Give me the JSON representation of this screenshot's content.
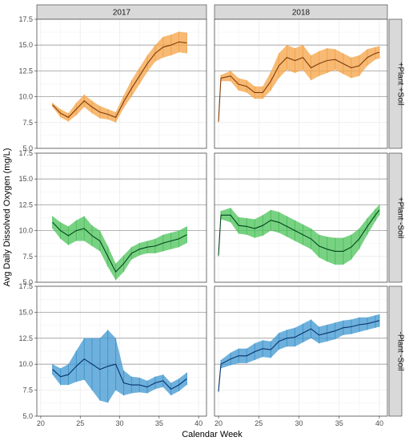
{
  "chart_data": {
    "type": "line",
    "ylabel": "Avg Daily Dissolved Oxygen (mg/L)",
    "xlabel": "Calendar Week",
    "facet_columns": [
      "2017",
      "2018"
    ],
    "facet_rows": [
      "+Plant +Soil",
      "+Plant -Soil",
      "-Plant -Soil"
    ],
    "xlim": [
      19.5,
      41
    ],
    "ylim": [
      5.0,
      17.5
    ],
    "x_ticks": [
      20,
      25,
      30,
      35,
      40
    ],
    "x_tick_labels": [
      "20",
      "25",
      "30",
      "35",
      "40"
    ],
    "y_ticks": [
      5.0,
      7.5,
      10.0,
      12.5,
      15.0,
      17.5
    ],
    "y_tick_labels": [
      "5.0",
      "7.5",
      "10.0",
      "12.5",
      "15.0",
      "17.5"
    ],
    "grid": true,
    "legend": "none",
    "row_colors": {
      "+Plant +Soil": {
        "line": "#7f3b08",
        "band": "#f4a347"
      },
      "+Plant -Soil": {
        "line": "#00441b",
        "band": "#4cc35a"
      },
      "-Plant -Soil": {
        "line": "#08306b",
        "band": "#3f97d0"
      }
    },
    "panels": [
      {
        "row": 0,
        "col": 0,
        "series": [
          {
            "x": 21.5,
            "mean": 9.2,
            "sd": 0.2
          },
          {
            "x": 22.5,
            "mean": 8.4,
            "sd": 0.4
          },
          {
            "x": 23.5,
            "mean": 8.0,
            "sd": 0.4
          },
          {
            "x": 24.5,
            "mean": 8.8,
            "sd": 0.6
          },
          {
            "x": 25.5,
            "mean": 9.6,
            "sd": 0.6
          },
          {
            "x": 26.5,
            "mean": 9.0,
            "sd": 0.6
          },
          {
            "x": 27.5,
            "mean": 8.5,
            "sd": 0.6
          },
          {
            "x": 28.5,
            "mean": 8.3,
            "sd": 0.5
          },
          {
            "x": 29.5,
            "mean": 8.0,
            "sd": 0.5
          },
          {
            "x": 30.5,
            "mean": 9.5,
            "sd": 0.6
          },
          {
            "x": 31.5,
            "mean": 10.8,
            "sd": 0.8
          },
          {
            "x": 32.5,
            "mean": 12.0,
            "sd": 0.8
          },
          {
            "x": 33.5,
            "mean": 13.2,
            "sd": 0.8
          },
          {
            "x": 34.5,
            "mean": 14.2,
            "sd": 0.8
          },
          {
            "x": 35.5,
            "mean": 14.8,
            "sd": 1.0
          },
          {
            "x": 36.5,
            "mean": 15.0,
            "sd": 1.0
          },
          {
            "x": 37.5,
            "mean": 15.3,
            "sd": 1.0
          },
          {
            "x": 38.5,
            "mean": 15.2,
            "sd": 1.0
          }
        ]
      },
      {
        "row": 0,
        "col": 1,
        "series": [
          {
            "x": 20.0,
            "mean": 7.6,
            "sd": 0.1
          },
          {
            "x": 20.3,
            "mean": 11.8,
            "sd": 0.3
          },
          {
            "x": 21.5,
            "mean": 12.0,
            "sd": 0.5
          },
          {
            "x": 22.5,
            "mean": 11.2,
            "sd": 0.6
          },
          {
            "x": 23.5,
            "mean": 11.0,
            "sd": 0.6
          },
          {
            "x": 24.5,
            "mean": 10.4,
            "sd": 0.6
          },
          {
            "x": 25.5,
            "mean": 10.4,
            "sd": 0.6
          },
          {
            "x": 26.5,
            "mean": 11.5,
            "sd": 0.9
          },
          {
            "x": 27.5,
            "mean": 13.0,
            "sd": 1.2
          },
          {
            "x": 28.5,
            "mean": 13.8,
            "sd": 1.2
          },
          {
            "x": 29.5,
            "mean": 13.5,
            "sd": 1.2
          },
          {
            "x": 30.5,
            "mean": 13.8,
            "sd": 1.2
          },
          {
            "x": 31.5,
            "mean": 12.8,
            "sd": 1.2
          },
          {
            "x": 32.5,
            "mean": 13.2,
            "sd": 1.2
          },
          {
            "x": 33.5,
            "mean": 13.5,
            "sd": 1.2
          },
          {
            "x": 34.5,
            "mean": 13.6,
            "sd": 1.0
          },
          {
            "x": 35.5,
            "mean": 13.2,
            "sd": 1.0
          },
          {
            "x": 36.5,
            "mean": 12.8,
            "sd": 1.0
          },
          {
            "x": 37.5,
            "mean": 13.0,
            "sd": 1.0
          },
          {
            "x": 38.5,
            "mean": 13.8,
            "sd": 0.8
          },
          {
            "x": 39.5,
            "mean": 14.2,
            "sd": 0.6
          },
          {
            "x": 40.0,
            "mean": 14.3,
            "sd": 0.6
          }
        ]
      },
      {
        "row": 1,
        "col": 0,
        "series": [
          {
            "x": 21.5,
            "mean": 10.8,
            "sd": 0.6
          },
          {
            "x": 22.5,
            "mean": 10.0,
            "sd": 0.8
          },
          {
            "x": 23.5,
            "mean": 9.5,
            "sd": 0.9
          },
          {
            "x": 24.5,
            "mean": 10.0,
            "sd": 1.0
          },
          {
            "x": 25.5,
            "mean": 10.2,
            "sd": 1.2
          },
          {
            "x": 26.5,
            "mean": 9.5,
            "sd": 1.0
          },
          {
            "x": 27.5,
            "mean": 9.0,
            "sd": 1.0
          },
          {
            "x": 28.5,
            "mean": 7.5,
            "sd": 1.0
          },
          {
            "x": 29.5,
            "mean": 6.0,
            "sd": 0.8
          },
          {
            "x": 30.5,
            "mean": 6.8,
            "sd": 0.8
          },
          {
            "x": 31.5,
            "mean": 7.8,
            "sd": 0.6
          },
          {
            "x": 32.5,
            "mean": 8.2,
            "sd": 0.6
          },
          {
            "x": 33.5,
            "mean": 8.4,
            "sd": 0.6
          },
          {
            "x": 34.5,
            "mean": 8.5,
            "sd": 0.7
          },
          {
            "x": 35.5,
            "mean": 8.8,
            "sd": 0.8
          },
          {
            "x": 36.5,
            "mean": 9.0,
            "sd": 0.8
          },
          {
            "x": 37.5,
            "mean": 9.2,
            "sd": 0.8
          },
          {
            "x": 38.5,
            "mean": 9.6,
            "sd": 0.8
          }
        ]
      },
      {
        "row": 1,
        "col": 1,
        "series": [
          {
            "x": 20.0,
            "mean": 7.6,
            "sd": 0.1
          },
          {
            "x": 20.3,
            "mean": 11.5,
            "sd": 0.4
          },
          {
            "x": 21.5,
            "mean": 11.5,
            "sd": 0.7
          },
          {
            "x": 22.5,
            "mean": 10.5,
            "sd": 0.8
          },
          {
            "x": 23.5,
            "mean": 10.4,
            "sd": 0.8
          },
          {
            "x": 24.5,
            "mean": 10.2,
            "sd": 0.9
          },
          {
            "x": 25.5,
            "mean": 10.5,
            "sd": 1.0
          },
          {
            "x": 26.5,
            "mean": 11.0,
            "sd": 1.0
          },
          {
            "x": 27.5,
            "mean": 10.8,
            "sd": 1.0
          },
          {
            "x": 28.5,
            "mean": 10.4,
            "sd": 1.0
          },
          {
            "x": 29.5,
            "mean": 10.0,
            "sd": 1.0
          },
          {
            "x": 30.5,
            "mean": 9.6,
            "sd": 1.0
          },
          {
            "x": 31.5,
            "mean": 9.2,
            "sd": 1.0
          },
          {
            "x": 32.5,
            "mean": 8.5,
            "sd": 1.1
          },
          {
            "x": 33.5,
            "mean": 8.2,
            "sd": 1.2
          },
          {
            "x": 34.5,
            "mean": 8.0,
            "sd": 1.3
          },
          {
            "x": 35.5,
            "mean": 8.0,
            "sd": 1.3
          },
          {
            "x": 36.5,
            "mean": 8.4,
            "sd": 1.2
          },
          {
            "x": 37.5,
            "mean": 9.2,
            "sd": 1.0
          },
          {
            "x": 38.5,
            "mean": 10.4,
            "sd": 0.8
          },
          {
            "x": 39.5,
            "mean": 11.5,
            "sd": 0.6
          },
          {
            "x": 40.0,
            "mean": 12.0,
            "sd": 0.5
          }
        ]
      },
      {
        "row": 2,
        "col": 0,
        "series": [
          {
            "x": 21.5,
            "mean": 9.5,
            "sd": 0.5
          },
          {
            "x": 22.5,
            "mean": 8.8,
            "sd": 0.8
          },
          {
            "x": 23.5,
            "mean": 9.0,
            "sd": 1.0
          },
          {
            "x": 24.5,
            "mean": 9.8,
            "sd": 1.5
          },
          {
            "x": 25.5,
            "mean": 10.5,
            "sd": 2.0
          },
          {
            "x": 26.5,
            "mean": 10.0,
            "sd": 2.5
          },
          {
            "x": 27.5,
            "mean": 9.5,
            "sd": 3.0
          },
          {
            "x": 28.5,
            "mean": 9.8,
            "sd": 3.5
          },
          {
            "x": 29.5,
            "mean": 10.0,
            "sd": 2.5
          },
          {
            "x": 30.5,
            "mean": 8.2,
            "sd": 1.2
          },
          {
            "x": 31.5,
            "mean": 8.0,
            "sd": 0.8
          },
          {
            "x": 32.5,
            "mean": 8.0,
            "sd": 0.7
          },
          {
            "x": 33.5,
            "mean": 7.8,
            "sd": 0.6
          },
          {
            "x": 34.5,
            "mean": 8.2,
            "sd": 0.6
          },
          {
            "x": 35.5,
            "mean": 8.4,
            "sd": 0.6
          },
          {
            "x": 36.5,
            "mean": 7.6,
            "sd": 0.6
          },
          {
            "x": 37.5,
            "mean": 8.0,
            "sd": 0.6
          },
          {
            "x": 38.5,
            "mean": 8.6,
            "sd": 0.6
          }
        ]
      },
      {
        "row": 2,
        "col": 1,
        "series": [
          {
            "x": 20.0,
            "mean": 7.4,
            "sd": 0.1
          },
          {
            "x": 20.3,
            "mean": 10.0,
            "sd": 0.4
          },
          {
            "x": 21.5,
            "mean": 10.5,
            "sd": 0.6
          },
          {
            "x": 22.5,
            "mean": 10.8,
            "sd": 0.7
          },
          {
            "x": 23.5,
            "mean": 10.8,
            "sd": 0.7
          },
          {
            "x": 24.5,
            "mean": 11.2,
            "sd": 0.8
          },
          {
            "x": 25.5,
            "mean": 11.5,
            "sd": 0.8
          },
          {
            "x": 26.5,
            "mean": 11.4,
            "sd": 0.8
          },
          {
            "x": 27.5,
            "mean": 12.2,
            "sd": 0.8
          },
          {
            "x": 28.5,
            "mean": 12.5,
            "sd": 0.8
          },
          {
            "x": 29.5,
            "mean": 12.6,
            "sd": 0.9
          },
          {
            "x": 30.5,
            "mean": 13.0,
            "sd": 0.9
          },
          {
            "x": 31.5,
            "mean": 13.4,
            "sd": 0.9
          },
          {
            "x": 32.5,
            "mean": 12.8,
            "sd": 0.8
          },
          {
            "x": 33.5,
            "mean": 13.0,
            "sd": 0.8
          },
          {
            "x": 34.5,
            "mean": 13.2,
            "sd": 0.8
          },
          {
            "x": 35.5,
            "mean": 13.5,
            "sd": 0.7
          },
          {
            "x": 36.5,
            "mean": 13.6,
            "sd": 0.7
          },
          {
            "x": 37.5,
            "mean": 13.8,
            "sd": 0.7
          },
          {
            "x": 38.5,
            "mean": 13.9,
            "sd": 0.6
          },
          {
            "x": 39.5,
            "mean": 14.1,
            "sd": 0.6
          },
          {
            "x": 40.0,
            "mean": 14.2,
            "sd": 0.6
          }
        ]
      }
    ]
  }
}
